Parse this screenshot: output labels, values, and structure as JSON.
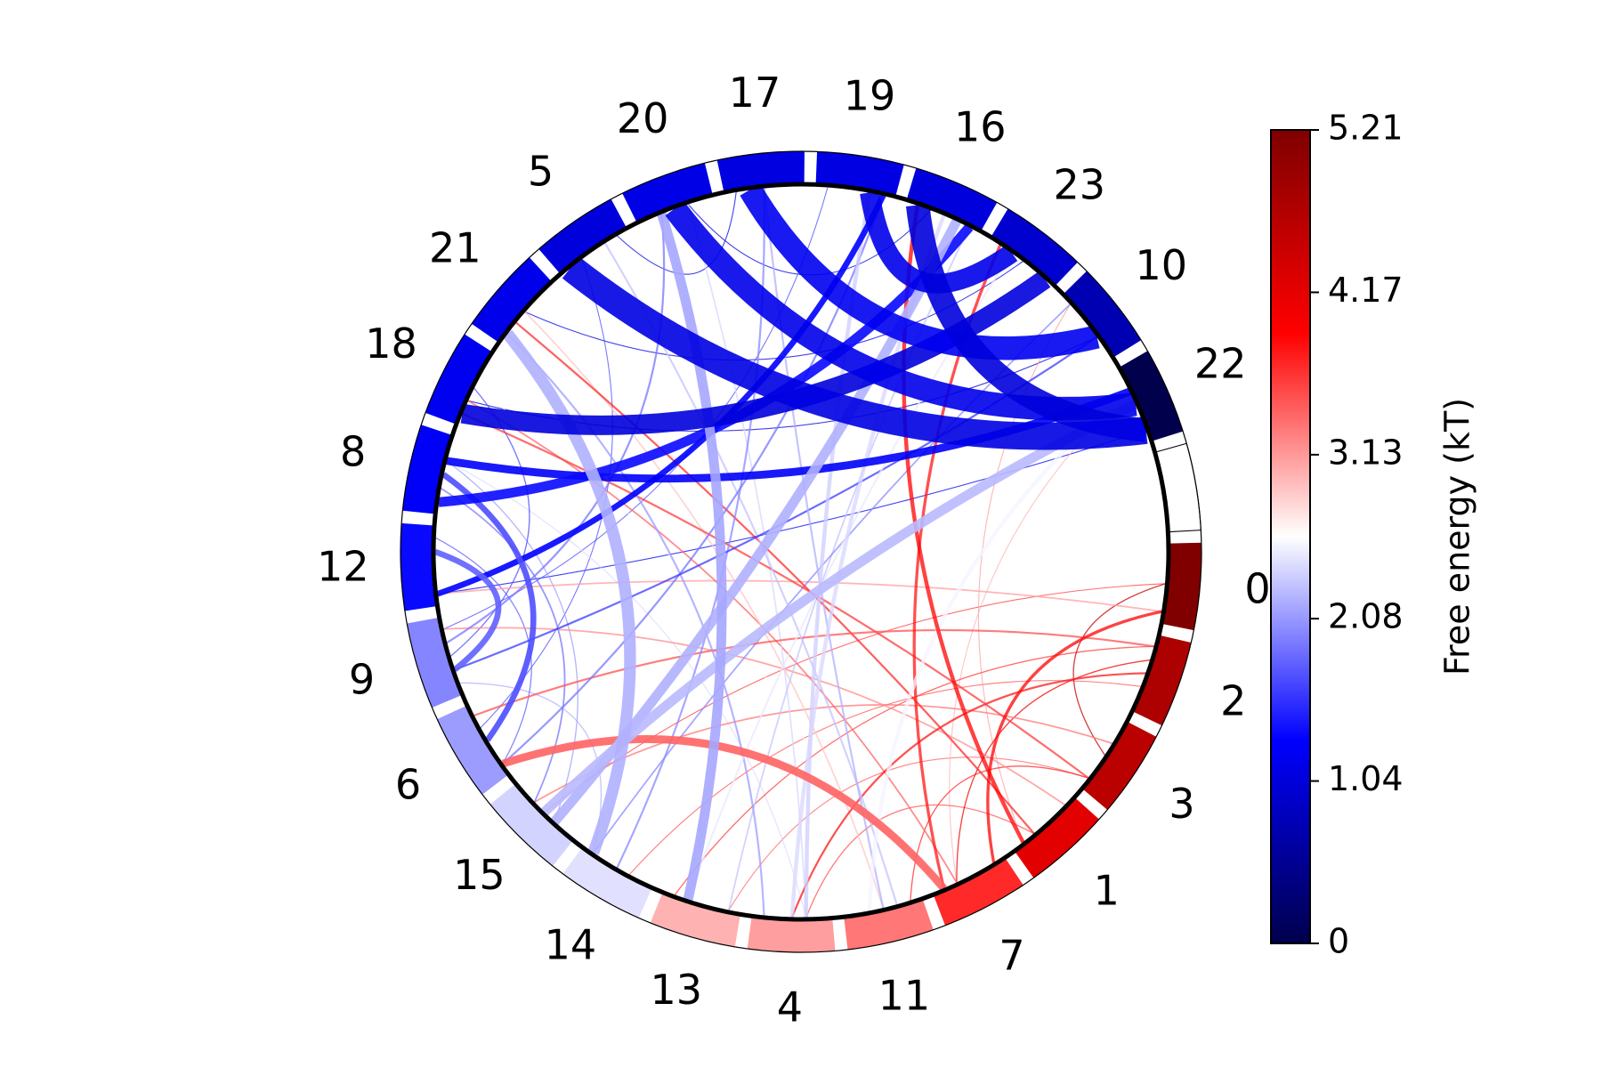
{
  "chart_data": {
    "type": "chord",
    "title": "",
    "nodes": [
      {
        "label": "0",
        "free_energy": 5.21
      },
      {
        "label": "2",
        "free_energy": 4.75
      },
      {
        "label": "3",
        "free_energy": 4.6
      },
      {
        "label": "1",
        "free_energy": 4.2
      },
      {
        "label": "7",
        "free_energy": 3.7
      },
      {
        "label": "11",
        "free_energy": 3.3
      },
      {
        "label": "4",
        "free_energy": 3.1
      },
      {
        "label": "13",
        "free_energy": 3.0
      },
      {
        "label": "14",
        "free_energy": 2.45
      },
      {
        "label": "15",
        "free_energy": 2.38
      },
      {
        "label": "6",
        "free_energy": 2.1
      },
      {
        "label": "9",
        "free_energy": 1.98
      },
      {
        "label": "12",
        "free_energy": 1.35
      },
      {
        "label": "8",
        "free_energy": 1.25
      },
      {
        "label": "18",
        "free_energy": 1.2
      },
      {
        "label": "21",
        "free_energy": 1.15
      },
      {
        "label": "5",
        "free_energy": 1.05
      },
      {
        "label": "20",
        "free_energy": 1.12
      },
      {
        "label": "17",
        "free_energy": 1.08
      },
      {
        "label": "19",
        "free_energy": 1.1
      },
      {
        "label": "16",
        "free_energy": 1.05
      },
      {
        "label": "23",
        "free_energy": 0.95
      },
      {
        "label": "10",
        "free_energy": 0.75
      },
      {
        "label": "22",
        "free_energy": 0.0
      },
      {
        "label": "",
        "free_energy": 2.6
      }
    ],
    "links": [
      {
        "source": "22",
        "target": "5",
        "weight": 14,
        "free_energy": 1.1
      },
      {
        "source": "22",
        "target": "20",
        "weight": 12,
        "free_energy": 1.15
      },
      {
        "source": "23",
        "target": "18",
        "weight": 10,
        "free_energy": 1.05
      },
      {
        "source": "17",
        "target": "10",
        "weight": 12,
        "free_energy": 1.2
      },
      {
        "source": "19",
        "target": "23",
        "weight": 10,
        "free_energy": 1.15
      },
      {
        "source": "16",
        "target": "22",
        "weight": 12,
        "free_energy": 1.05
      },
      {
        "source": "16",
        "target": "8",
        "weight": 5,
        "free_energy": 1.35
      },
      {
        "source": "22",
        "target": "8",
        "weight": 4,
        "free_energy": 1.25
      },
      {
        "source": "19",
        "target": "12",
        "weight": 3,
        "free_energy": 1.3
      },
      {
        "source": "21",
        "target": "14",
        "weight": 6,
        "free_energy": 2.2
      },
      {
        "source": "16",
        "target": "15",
        "weight": 5,
        "free_energy": 2.2
      },
      {
        "source": "22",
        "target": "15",
        "weight": 5,
        "free_energy": 2.25
      },
      {
        "source": "6",
        "target": "7",
        "weight": 4,
        "free_energy": 3.4
      },
      {
        "source": "20",
        "target": "13",
        "weight": 5,
        "free_energy": 2.15
      },
      {
        "source": "12",
        "target": "9",
        "weight": 3,
        "free_energy": 1.8
      },
      {
        "source": "8",
        "target": "6",
        "weight": 3,
        "free_energy": 1.7
      },
      {
        "source": "19",
        "target": "4",
        "weight": 2,
        "free_energy": 2.35
      },
      {
        "source": "16",
        "target": "4",
        "weight": 2,
        "free_energy": 2.4
      },
      {
        "source": "22",
        "target": "11",
        "weight": 2,
        "free_energy": 2.55
      },
      {
        "source": "16",
        "target": "1",
        "weight": 2,
        "free_energy": 3.9
      },
      {
        "source": "23",
        "target": "7",
        "weight": 1.5,
        "free_energy": 3.8
      },
      {
        "source": "0",
        "target": "7",
        "weight": 1.5,
        "free_energy": 3.9
      },
      {
        "source": "2",
        "target": "4",
        "weight": 1,
        "free_energy": 3.8
      },
      {
        "source": "21",
        "target": "1",
        "weight": 1,
        "free_energy": 3.7
      },
      {
        "source": "18",
        "target": "3",
        "weight": 1,
        "free_energy": 3.6
      },
      {
        "source": "6",
        "target": "2",
        "weight": 1,
        "free_energy": 3.5
      },
      {
        "source": "5",
        "target": "11",
        "weight": 1,
        "free_energy": 2.3
      },
      {
        "source": "17",
        "target": "14",
        "weight": 1,
        "free_energy": 2.0
      },
      {
        "source": "20",
        "target": "9",
        "weight": 1,
        "free_energy": 1.9
      },
      {
        "source": "21",
        "target": "4",
        "weight": 1,
        "free_energy": 2.1
      },
      {
        "source": "19",
        "target": "6",
        "weight": 1,
        "free_energy": 1.9
      },
      {
        "source": "10",
        "target": "9",
        "weight": 1,
        "free_energy": 1.6
      },
      {
        "source": "17",
        "target": "11",
        "weight": 1,
        "free_energy": 2.2
      },
      {
        "source": "23",
        "target": "13",
        "weight": 1,
        "free_energy": 2.5
      },
      {
        "source": "3",
        "target": "15",
        "weight": 0.8,
        "free_energy": 3.3
      },
      {
        "source": "1",
        "target": "9",
        "weight": 0.8,
        "free_energy": 3.2
      },
      {
        "source": "0",
        "target": "12",
        "weight": 0.8,
        "free_energy": 3.1
      },
      {
        "source": "7",
        "target": "18",
        "weight": 0.8,
        "free_energy": 3.4
      },
      {
        "source": "11",
        "target": "21",
        "weight": 0.8,
        "free_energy": 2.9
      },
      {
        "source": "4",
        "target": "20",
        "weight": 0.8,
        "free_energy": 2.4
      },
      {
        "source": "13",
        "target": "16",
        "weight": 0.8,
        "free_energy": 2.3
      },
      {
        "source": "14",
        "target": "10",
        "weight": 0.8,
        "free_energy": 2.0
      },
      {
        "source": "15",
        "target": "8",
        "weight": 0.8,
        "free_energy": 1.9
      },
      {
        "source": "2",
        "target": "13",
        "weight": 0.6,
        "free_energy": 3.6
      },
      {
        "source": "3",
        "target": "11",
        "weight": 0.6,
        "free_energy": 3.7
      },
      {
        "source": "1",
        "target": "4",
        "weight": 0.6,
        "free_energy": 3.5
      },
      {
        "source": "0",
        "target": "3",
        "weight": 0.6,
        "free_energy": 4.5
      },
      {
        "source": "2",
        "target": "7",
        "weight": 0.6,
        "free_energy": 4.0
      },
      {
        "source": "9",
        "target": "14",
        "weight": 0.6,
        "free_energy": 2.2
      },
      {
        "source": "12",
        "target": "6",
        "weight": 0.6,
        "free_energy": 1.8
      },
      {
        "source": "8",
        "target": "15",
        "weight": 0.6,
        "free_energy": 2.1
      },
      {
        "source": "18",
        "target": "9",
        "weight": 0.6,
        "free_energy": 1.7
      },
      {
        "source": "5",
        "target": "17",
        "weight": 0.5,
        "free_energy": 1.1
      },
      {
        "source": "20",
        "target": "16",
        "weight": 0.5,
        "free_energy": 1.1
      },
      {
        "source": "21",
        "target": "23",
        "weight": 0.5,
        "free_energy": 1.1
      },
      {
        "source": "18",
        "target": "10",
        "weight": 0.5,
        "free_energy": 1.0
      },
      {
        "source": "12",
        "target": "22",
        "weight": 0.5,
        "free_energy": 1.2
      },
      {
        "source": "9",
        "target": "19",
        "weight": 0.5,
        "free_energy": 1.7
      },
      {
        "source": "6",
        "target": "5",
        "weight": 0.5,
        "free_energy": 1.7
      },
      {
        "source": "15",
        "target": "0",
        "weight": 0.5,
        "free_energy": 3.6
      },
      {
        "source": "14",
        "target": "2",
        "weight": 0.5,
        "free_energy": 3.5
      },
      {
        "source": "13",
        "target": "3",
        "weight": 0.5,
        "free_energy": 3.4
      },
      {
        "source": "1",
        "target": "10",
        "weight": 0.5,
        "free_energy": 3.1
      },
      {
        "source": "7",
        "target": "22",
        "weight": 0.5,
        "free_energy": 3.0
      },
      {
        "source": "11",
        "target": "18",
        "weight": 0.5,
        "free_energy": 2.6
      },
      {
        "source": "4",
        "target": "8",
        "weight": 0.5,
        "free_energy": 2.4
      }
    ],
    "colorbar": {
      "label": "Free energy (kT)",
      "min": 0,
      "max": 5.21,
      "ticks": [
        "0",
        "1.04",
        "2.08",
        "3.13",
        "4.17",
        "5.21"
      ],
      "colormap": "seismic"
    }
  }
}
